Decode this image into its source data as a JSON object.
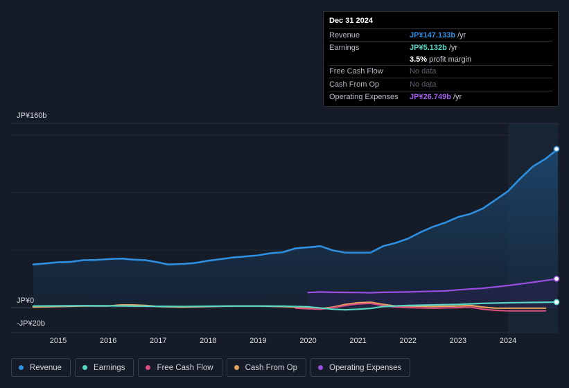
{
  "chart_data": {
    "type": "line",
    "y_axis": {
      "top_label": "JP¥160b",
      "zero_label": "JP¥0",
      "bottom_label": "-JP¥20b",
      "ylim": [
        -20,
        160
      ]
    },
    "x_ticks": [
      "2015",
      "2016",
      "2017",
      "2018",
      "2019",
      "2020",
      "2021",
      "2022",
      "2023",
      "2024"
    ],
    "series": [
      {
        "name": "Revenue",
        "color": "#2f8fe0",
        "points": [
          [
            2014.5,
            40
          ],
          [
            2015.0,
            42
          ],
          [
            2015.25,
            42.5
          ],
          [
            2015.5,
            44
          ],
          [
            2015.75,
            44.2
          ],
          [
            2016.0,
            45
          ],
          [
            2016.25,
            45.5
          ],
          [
            2016.5,
            44.5
          ],
          [
            2016.75,
            44
          ],
          [
            2017.0,
            42
          ],
          [
            2017.2,
            40
          ],
          [
            2017.5,
            40.5
          ],
          [
            2017.75,
            41.5
          ],
          [
            2018.0,
            43.5
          ],
          [
            2018.25,
            45
          ],
          [
            2018.5,
            46.5
          ],
          [
            2018.75,
            47.5
          ],
          [
            2019.0,
            48.5
          ],
          [
            2019.25,
            50.5
          ],
          [
            2019.5,
            51.5
          ],
          [
            2019.75,
            55
          ],
          [
            2020.0,
            56
          ],
          [
            2020.25,
            57
          ],
          [
            2020.5,
            53
          ],
          [
            2020.75,
            51
          ],
          [
            2021.0,
            51
          ],
          [
            2021.25,
            51
          ],
          [
            2021.5,
            57
          ],
          [
            2021.75,
            60
          ],
          [
            2022.0,
            64
          ],
          [
            2022.25,
            70
          ],
          [
            2022.5,
            75
          ],
          [
            2022.75,
            79
          ],
          [
            2023.0,
            84
          ],
          [
            2023.25,
            87
          ],
          [
            2023.5,
            92
          ],
          [
            2023.75,
            100
          ],
          [
            2024.0,
            108
          ],
          [
            2024.25,
            120
          ],
          [
            2024.5,
            131
          ],
          [
            2024.75,
            138
          ],
          [
            2025.0,
            147.133
          ]
        ]
      },
      {
        "name": "Earnings",
        "color": "#57d6c4",
        "points": [
          [
            2014.5,
            1.5
          ],
          [
            2015.0,
            1.6
          ],
          [
            2015.5,
            1.8
          ],
          [
            2016.0,
            1.7
          ],
          [
            2016.5,
            1.4
          ],
          [
            2017.0,
            1.2
          ],
          [
            2017.5,
            1.1
          ],
          [
            2018.0,
            1.3
          ],
          [
            2018.5,
            1.5
          ],
          [
            2019.0,
            1.5
          ],
          [
            2019.5,
            1.4
          ],
          [
            2020.0,
            0.8
          ],
          [
            2020.5,
            -1.5
          ],
          [
            2020.75,
            -2
          ],
          [
            2021.0,
            -1.5
          ],
          [
            2021.25,
            -0.8
          ],
          [
            2021.5,
            1
          ],
          [
            2022.0,
            2
          ],
          [
            2022.5,
            2.5
          ],
          [
            2023.0,
            3
          ],
          [
            2023.5,
            4
          ],
          [
            2024.0,
            4.5
          ],
          [
            2024.5,
            4.8
          ],
          [
            2025.0,
            5.132
          ]
        ]
      },
      {
        "name": "Free Cash Flow",
        "color": "#d84e7c",
        "points": [
          [
            2019.75,
            -0.5
          ],
          [
            2020.0,
            -1
          ],
          [
            2020.25,
            -1.5
          ],
          [
            2020.5,
            0
          ],
          [
            2020.75,
            2
          ],
          [
            2021.0,
            3.5
          ],
          [
            2021.25,
            4
          ],
          [
            2021.5,
            2
          ],
          [
            2021.75,
            0.5
          ],
          [
            2022.0,
            0
          ],
          [
            2022.5,
            -0.5
          ],
          [
            2023.0,
            0
          ],
          [
            2023.25,
            0.5
          ],
          [
            2023.5,
            -1.5
          ],
          [
            2023.75,
            -2.5
          ],
          [
            2024.0,
            -3
          ],
          [
            2024.5,
            -3
          ],
          [
            2024.75,
            -3
          ]
        ]
      },
      {
        "name": "Cash From Op",
        "color": "#e6a35d",
        "points": [
          [
            2014.5,
            0.5
          ],
          [
            2015.0,
            1
          ],
          [
            2015.5,
            1.5
          ],
          [
            2016.0,
            1.5
          ],
          [
            2016.25,
            2.5
          ],
          [
            2016.5,
            2.5
          ],
          [
            2016.75,
            2
          ],
          [
            2017.0,
            1
          ],
          [
            2017.5,
            0.5
          ],
          [
            2018.0,
            1
          ],
          [
            2018.5,
            1.5
          ],
          [
            2019.0,
            1.5
          ],
          [
            2019.5,
            1
          ],
          [
            2019.75,
            0.5
          ],
          [
            2020.0,
            -0.5
          ],
          [
            2020.25,
            -1
          ],
          [
            2020.5,
            0.5
          ],
          [
            2020.75,
            3
          ],
          [
            2021.0,
            4.5
          ],
          [
            2021.25,
            5
          ],
          [
            2021.5,
            3
          ],
          [
            2021.75,
            1.5
          ],
          [
            2022.0,
            1.5
          ],
          [
            2022.5,
            1
          ],
          [
            2023.0,
            1.5
          ],
          [
            2023.25,
            2
          ],
          [
            2023.5,
            0.5
          ],
          [
            2023.75,
            -0.5
          ],
          [
            2024.0,
            -0.5
          ],
          [
            2024.5,
            -0.5
          ],
          [
            2024.75,
            -0.5
          ]
        ]
      },
      {
        "name": "Operating Expenses",
        "color": "#9a4ee0",
        "points": [
          [
            2020.0,
            14
          ],
          [
            2020.25,
            14.5
          ],
          [
            2020.5,
            14.2
          ],
          [
            2021.0,
            14
          ],
          [
            2021.25,
            13.8
          ],
          [
            2021.5,
            14.2
          ],
          [
            2022.0,
            14.5
          ],
          [
            2022.5,
            15.2
          ],
          [
            2022.75,
            15.5
          ],
          [
            2023.0,
            16.5
          ],
          [
            2023.5,
            18
          ],
          [
            2024.0,
            20.5
          ],
          [
            2024.5,
            23.5
          ],
          [
            2024.75,
            25.2
          ],
          [
            2025.0,
            26.749
          ]
        ]
      }
    ]
  },
  "tooltip": {
    "date": "Dec 31 2024",
    "rows": [
      {
        "label": "Revenue",
        "value": "JP¥147.133b",
        "unit": "/yr",
        "color": "#2f8fe0"
      },
      {
        "label": "Earnings",
        "value": "JP¥5.132b",
        "unit": "/yr",
        "color": "#57d6c4"
      },
      {
        "label": "Free Cash Flow",
        "value": "No data",
        "unit": "",
        "color": "#5c636e"
      },
      {
        "label": "Cash From Op",
        "value": "No data",
        "unit": "",
        "color": "#5c636e"
      },
      {
        "label": "Operating Expenses",
        "value": "JP¥26.749b",
        "unit": "/yr",
        "color": "#a45ef0"
      }
    ],
    "profit_margin": {
      "value": "3.5%",
      "label": "profit margin"
    }
  },
  "legend": [
    {
      "label": "Revenue",
      "color": "#2f8fe0"
    },
    {
      "label": "Earnings",
      "color": "#57d6c4"
    },
    {
      "label": "Free Cash Flow",
      "color": "#d84e7c"
    },
    {
      "label": "Cash From Op",
      "color": "#e6a35d"
    },
    {
      "label": "Operating Expenses",
      "color": "#9a4ee0"
    }
  ]
}
